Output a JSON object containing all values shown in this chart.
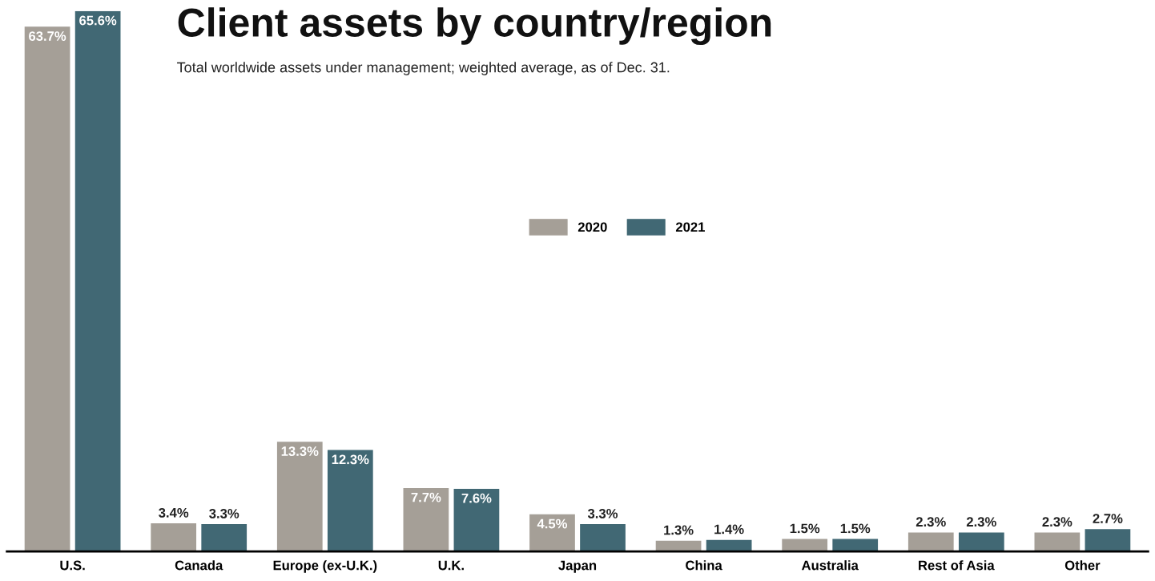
{
  "chart_data": {
    "type": "bar",
    "title": "Client assets by country/region",
    "subtitle": "Total worldwide assets under management; weighted average, as of Dec. 31.",
    "categories": [
      "U.S.",
      "Canada",
      "Europe (ex-U.K.)",
      "U.K.",
      "Japan",
      "China",
      "Australia",
      "Rest of Asia",
      "Other"
    ],
    "series": [
      {
        "name": "2020",
        "color": "#a59f97",
        "values": [
          63.7,
          3.4,
          13.3,
          7.7,
          4.5,
          1.3,
          1.5,
          2.3,
          2.3
        ],
        "value_labels": [
          "63.7%",
          "3.4%",
          "13.3%",
          "7.7%",
          "4.5%",
          "1.3%",
          "1.5%",
          "2.3%",
          "2.3%"
        ]
      },
      {
        "name": "2021",
        "color": "#416874",
        "values": [
          65.6,
          3.3,
          12.3,
          7.6,
          3.3,
          1.4,
          1.5,
          2.3,
          2.7
        ],
        "value_labels": [
          "65.6%",
          "3.3%",
          "12.3%",
          "7.6%",
          "3.3%",
          "1.4%",
          "1.5%",
          "2.3%",
          "2.7%"
        ]
      }
    ],
    "legend": "top",
    "grid": false
  }
}
